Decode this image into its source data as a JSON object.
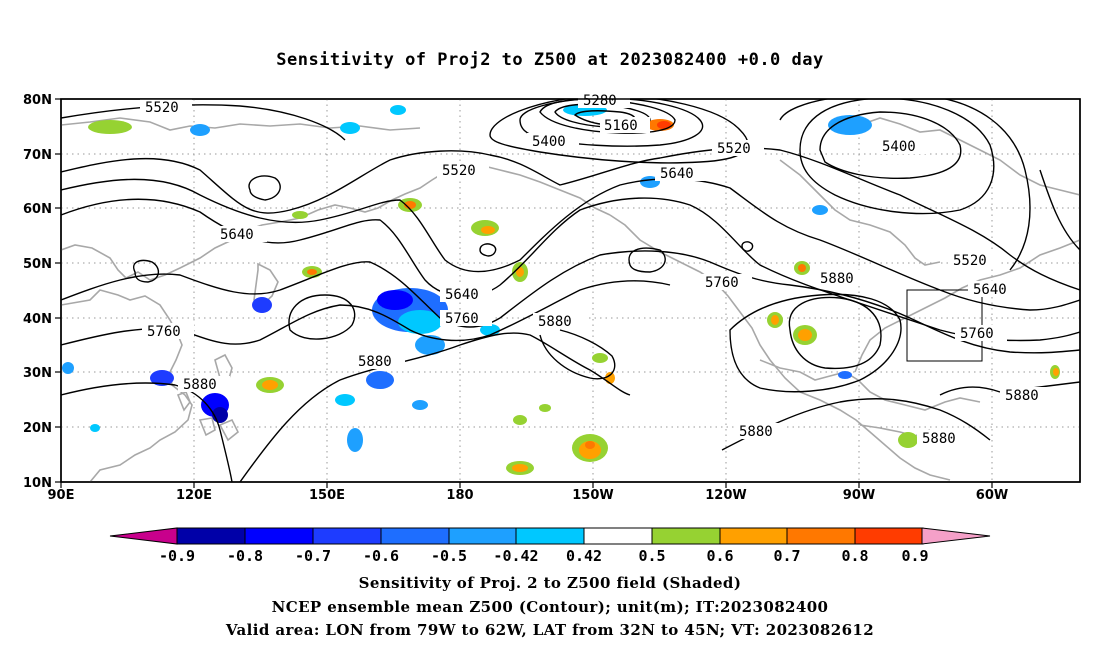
{
  "title": "Sensitivity of Proj2 to Z500 at 2023082400 +0.0 day",
  "map": {
    "lat_labels": [
      "80N",
      "70N",
      "60N",
      "50N",
      "40N",
      "30N",
      "20N",
      "10N"
    ],
    "lon_labels": [
      "90E",
      "120E",
      "150E",
      "180",
      "150W",
      "120W",
      "90W",
      "60W"
    ],
    "lon_range": [
      "90E",
      "40W"
    ],
    "lat_range": [
      "10N",
      "80N"
    ],
    "grid": "dotted",
    "valid_area_box": {
      "lon": [
        "79W",
        "62W"
      ],
      "lat": [
        "32N",
        "45N"
      ]
    }
  },
  "contour_labels": [
    "5520",
    "5280",
    "5160",
    "5400",
    "5520",
    "5520",
    "5400",
    "5640",
    "5640",
    "5520",
    "5880",
    "5640",
    "5760",
    "5640",
    "5760",
    "5880",
    "5760",
    "5760",
    "5880",
    "5880",
    "5880",
    "5880",
    "5880"
  ],
  "colorbar": {
    "labels": [
      "-0.9",
      "-0.8",
      "-0.7",
      "-0.6",
      "-0.5",
      "-0.42",
      "0.42",
      "0.5",
      "0.6",
      "0.7",
      "0.8",
      "0.9"
    ],
    "colors": [
      "#c8008c",
      "#0000a8",
      "#0000ff",
      "#1e3cff",
      "#1e6eff",
      "#1ea0ff",
      "#00c8ff",
      "#ffffff",
      "#96d232",
      "#ffa000",
      "#ff7800",
      "#ff3c00",
      "#ff0000",
      "#f5a0c8"
    ]
  },
  "captions": [
    "Sensitivity of Proj. 2 to Z500 field (Shaded)",
    "NCEP ensemble mean Z500 (Contour); unit(m); IT:2023082400",
    "Valid area: LON from 79W to 62W, LAT from 32N to 45N; VT: 2023082612"
  ]
}
